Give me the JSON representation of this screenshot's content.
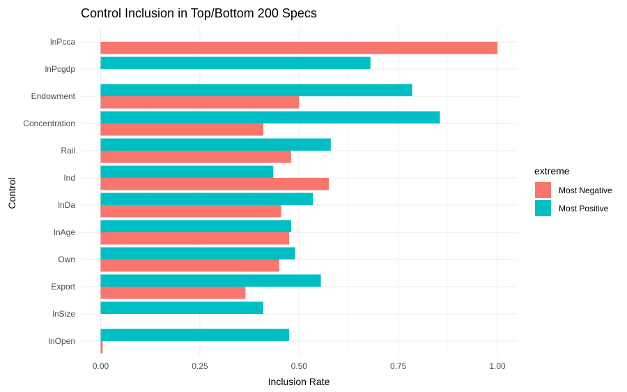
{
  "chart_data": {
    "type": "bar",
    "orientation": "horizontal",
    "title": "Control Inclusion in Top/Bottom 200 Specs",
    "xlabel": "Inclusion Rate",
    "ylabel": "Control",
    "xlim": [
      0,
      1
    ],
    "x_ticks": [
      0,
      0.25,
      0.5,
      0.75,
      1
    ],
    "x_tick_labels": [
      "0.00",
      "0.25",
      "0.50",
      "0.75",
      "1.00"
    ],
    "grid": true,
    "legend": {
      "title": "extreme",
      "position": "right"
    },
    "categories": [
      "lnPcca",
      "lnPcgdp",
      "Endowment",
      "Concentration",
      "Rail",
      "Ind",
      "lnDa",
      "lnAge",
      "Own",
      "Export",
      "lnSize",
      "lnOpen"
    ],
    "series": [
      {
        "name": "Most Negative",
        "color": "#F8766D",
        "values": [
          1.0,
          0.0,
          0.5,
          0.41,
          0.48,
          0.575,
          0.455,
          0.475,
          0.45,
          0.365,
          0.0,
          0.005
        ]
      },
      {
        "name": "Most Positive",
        "color": "#00BFC4",
        "values": [
          0.0,
          0.68,
          0.785,
          0.855,
          0.58,
          0.435,
          0.535,
          0.48,
          0.49,
          0.555,
          0.41,
          0.475
        ]
      }
    ]
  }
}
